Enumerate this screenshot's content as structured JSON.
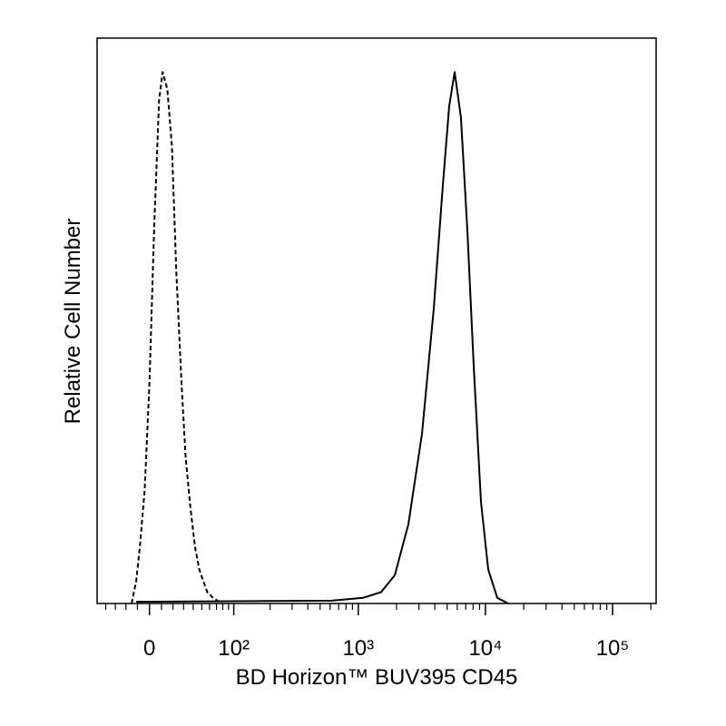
{
  "chart_data": {
    "type": "line",
    "x_label": "BD Horizon™ BUV395 CD45",
    "y_label": "Relative Cell Number",
    "xscale": "biexponential",
    "xlim": [
      -50,
      220000
    ],
    "ylim": [
      0,
      100
    ],
    "xticks": [
      0,
      {
        "value": 100,
        "label": "10²"
      },
      {
        "value": 1000,
        "label": "10³"
      },
      {
        "value": 10000,
        "label": "10⁴"
      },
      {
        "value": 100000,
        "label": "10⁵"
      }
    ],
    "xminorticks": [
      -40,
      -30,
      -20,
      -10,
      10,
      20,
      30,
      40,
      50,
      60,
      70,
      80,
      90,
      200,
      300,
      400,
      500,
      600,
      700,
      800,
      900,
      2000,
      3000,
      4000,
      5000,
      6000,
      7000,
      8000,
      9000,
      20000,
      30000,
      40000,
      50000,
      60000,
      70000,
      80000,
      90000,
      200000
    ],
    "series": [
      {
        "color": "#000000",
        "dashed": true,
        "x": [
          -15,
          -11,
          -8,
          -4,
          0,
          4,
          8,
          11,
          15,
          19,
          23,
          28,
          32,
          37,
          42,
          47,
          57,
          65,
          79
        ],
        "values": [
          0,
          4,
          10,
          20,
          39,
          67,
          89,
          94,
          91,
          81,
          59,
          39,
          26,
          17,
          10,
          6,
          2,
          1,
          0
        ]
      },
      {
        "color": "#000000",
        "dashed": false,
        "x": [
          -11,
          611,
          1088,
          1512,
          1935,
          2476,
          3170,
          3920,
          4624,
          5190,
          5730,
          6420,
          7210,
          8090,
          9230,
          10530,
          12400,
          15100
        ],
        "values": [
          0.3,
          0.5,
          1,
          2,
          5,
          14,
          30,
          52,
          74,
          88,
          94,
          86,
          66,
          42,
          18,
          6,
          1,
          0
        ]
      }
    ]
  }
}
